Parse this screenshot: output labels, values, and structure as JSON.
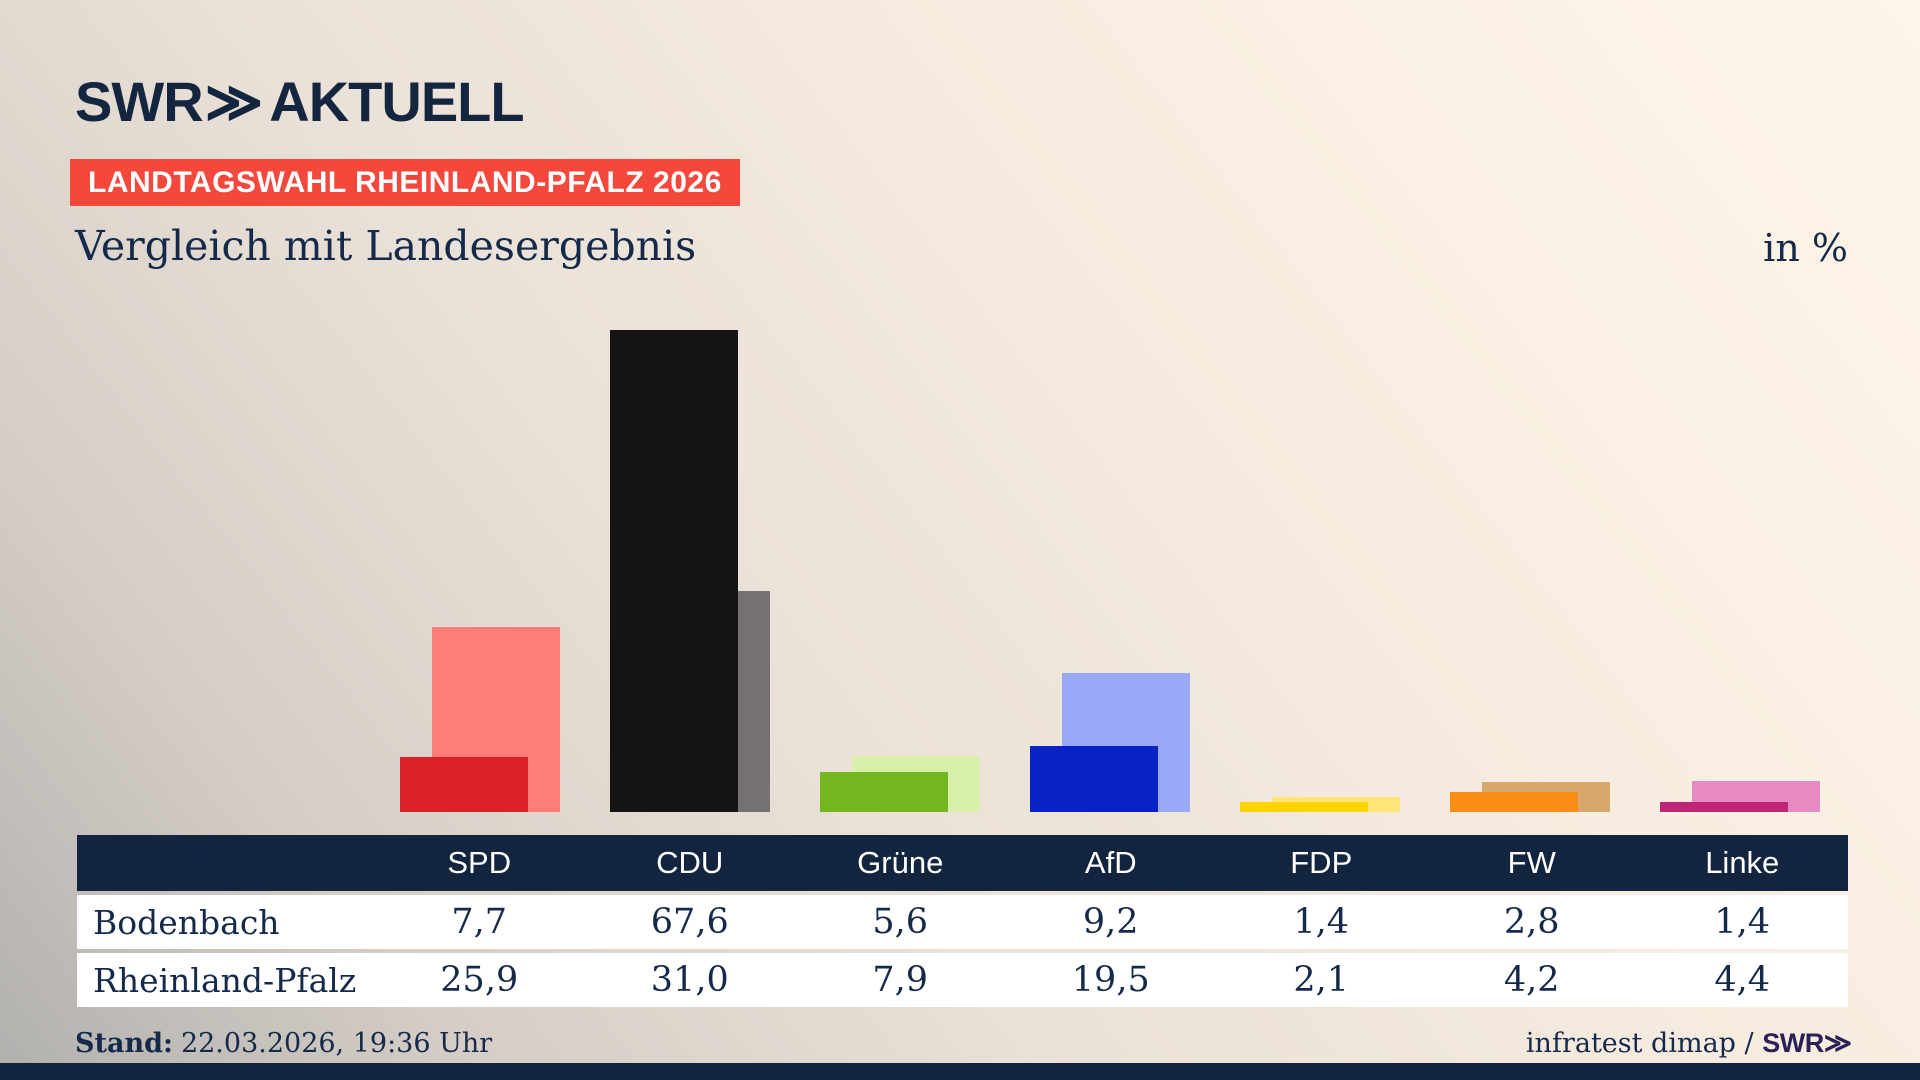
{
  "brand": {
    "name": "SWR",
    "chevrons": "≫",
    "word": "AKTUELL"
  },
  "badge": {
    "label": "LANDTAGSWAHL RHEINLAND-PFALZ 2026",
    "bg": "#f5483d"
  },
  "title": {
    "text": "Vergleich mit Landesergebnis",
    "unit": "in %"
  },
  "footer": {
    "stand_label": "Stand:",
    "stand_value": "22.03.2026, 19:36 Uhr",
    "source": "infratest dimap / ",
    "source_brand": "SWR",
    "source_chevrons": "≫"
  },
  "colors": {
    "navy": "#13243f",
    "text_navy": "#15294b",
    "table_row_bg": "#ffffff",
    "badge_red": "#f5483d",
    "footer_brand": "#2c2157",
    "bottom_bar": "#13243f"
  },
  "chart_data": {
    "type": "bar",
    "title": "Vergleich mit Landesergebnis",
    "unit": "in %",
    "categories": [
      "SPD",
      "CDU",
      "Grüne",
      "AfD",
      "FDP",
      "FW",
      "Linke"
    ],
    "series": [
      {
        "name": "Bodenbach",
        "values": [
          7.7,
          67.6,
          5.6,
          9.2,
          1.4,
          2.8,
          1.4
        ],
        "labels": [
          "7,7",
          "67,6",
          "5,6",
          "9,2",
          "1,4",
          "2,8",
          "1,4"
        ],
        "colors": [
          "#da2127",
          "#141414",
          "#73b61e",
          "#0822c5",
          "#ffd300",
          "#fb8d14",
          "#c02474"
        ]
      },
      {
        "name": "Rheinland-Pfalz",
        "values": [
          25.9,
          31.0,
          7.9,
          19.5,
          2.1,
          4.2,
          4.4
        ],
        "labels": [
          "25,9",
          "31,0",
          "7,9",
          "19,5",
          "2,1",
          "4,2",
          "4,4"
        ],
        "colors": [
          "#ff7d78",
          "#767171",
          "#d9f0ac",
          "#9aa8f8",
          "#ffe478",
          "#d8a76c",
          "#e78ac4"
        ]
      }
    ],
    "ylim": [
      0,
      70
    ],
    "grid": false,
    "axes_visible": false,
    "legend_position": "table-rows-below-chart"
  }
}
